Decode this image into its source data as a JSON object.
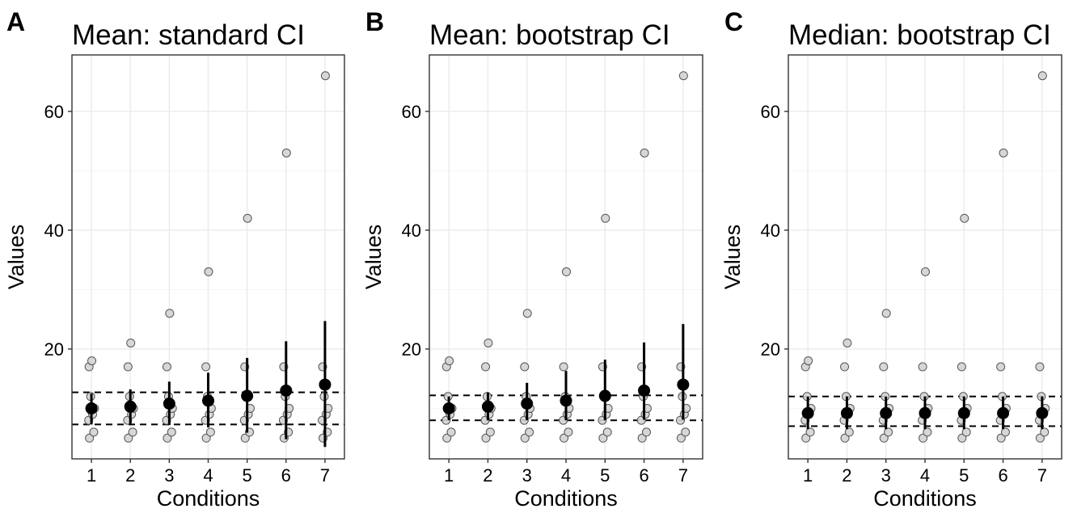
{
  "chart_data": [
    {
      "tag": "A",
      "title": "Mean: standard CI",
      "type": "scatter",
      "xlabel": "Conditions",
      "ylabel": "Values",
      "categories": [
        "1",
        "2",
        "3",
        "4",
        "5",
        "6",
        "7"
      ],
      "yticks": [
        "20",
        "40",
        "60"
      ],
      "ylim": [
        1.5,
        69.5
      ],
      "grid": true,
      "raw_points": [
        [
          5,
          6,
          8,
          9,
          10,
          12,
          17,
          18
        ],
        [
          5,
          6,
          8,
          9,
          10,
          12,
          17,
          21
        ],
        [
          5,
          6,
          8,
          9,
          10,
          12,
          17,
          26
        ],
        [
          5,
          6,
          8,
          9,
          10,
          12,
          17,
          33
        ],
        [
          5,
          6,
          8,
          9,
          10,
          12,
          17,
          42
        ],
        [
          5,
          6,
          8,
          9,
          10,
          12,
          17,
          53
        ],
        [
          5,
          6,
          8,
          9,
          10,
          12,
          17,
          66
        ]
      ],
      "estimate": [
        10,
        10.3,
        10.8,
        11.3,
        12.1,
        13.0,
        14.0
      ],
      "ci_low": [
        7.3,
        7.3,
        7.2,
        6.8,
        5.9,
        4.8,
        3.5
      ],
      "ci_high": [
        12.5,
        13.2,
        14.5,
        16.0,
        18.5,
        21.3,
        24.7
      ],
      "reference_lines": [
        7.3,
        12.7
      ]
    },
    {
      "tag": "B",
      "title": "Mean: bootstrap CI",
      "type": "scatter",
      "xlabel": "Conditions",
      "ylabel": "Values",
      "categories": [
        "1",
        "2",
        "3",
        "4",
        "5",
        "6",
        "7"
      ],
      "yticks": [
        "20",
        "40",
        "60"
      ],
      "ylim": [
        1.5,
        69.5
      ],
      "grid": true,
      "raw_points": [
        [
          5,
          6,
          8,
          9,
          10,
          12,
          17,
          18
        ],
        [
          5,
          6,
          8,
          9,
          10,
          12,
          17,
          21
        ],
        [
          5,
          6,
          8,
          9,
          10,
          12,
          17,
          26
        ],
        [
          5,
          6,
          8,
          9,
          10,
          12,
          17,
          33
        ],
        [
          5,
          6,
          8,
          9,
          10,
          12,
          17,
          42
        ],
        [
          5,
          6,
          8,
          9,
          10,
          12,
          17,
          53
        ],
        [
          5,
          6,
          8,
          9,
          10,
          12,
          17,
          66
        ]
      ],
      "estimate": [
        10,
        10.3,
        10.8,
        11.3,
        12.1,
        13.0,
        14.0
      ],
      "ci_low": [
        8.0,
        8.0,
        8.0,
        8.0,
        8.0,
        8.1,
        8.1
      ],
      "ci_high": [
        12.0,
        12.7,
        14.3,
        16.3,
        18.2,
        21.1,
        24.2
      ],
      "reference_lines": [
        8.0,
        12.2
      ]
    },
    {
      "tag": "C",
      "title": "Median: bootstrap CI",
      "type": "scatter",
      "xlabel": "Conditions",
      "ylabel": "Values",
      "categories": [
        "1",
        "2",
        "3",
        "4",
        "5",
        "6",
        "7"
      ],
      "yticks": [
        "20",
        "40",
        "60"
      ],
      "ylim": [
        1.5,
        69.5
      ],
      "grid": true,
      "raw_points": [
        [
          5,
          6,
          8,
          9,
          10,
          12,
          17,
          18
        ],
        [
          5,
          6,
          8,
          9,
          10,
          12,
          17,
          21
        ],
        [
          5,
          6,
          8,
          9,
          10,
          12,
          17,
          26
        ],
        [
          5,
          6,
          8,
          9,
          10,
          12,
          17,
          33
        ],
        [
          5,
          6,
          8,
          9,
          10,
          12,
          17,
          42
        ],
        [
          5,
          6,
          8,
          9,
          10,
          12,
          17,
          53
        ],
        [
          5,
          6,
          8,
          9,
          10,
          12,
          17,
          66
        ]
      ],
      "estimate": [
        9.2,
        9.2,
        9.2,
        9.2,
        9.2,
        9.2,
        9.2
      ],
      "ci_low": [
        6.5,
        6.5,
        6.5,
        6.5,
        6.5,
        6.5,
        6.5
      ],
      "ci_high": [
        12.0,
        12.0,
        12.0,
        12.0,
        12.0,
        12.0,
        12.0
      ],
      "reference_lines": [
        7.0,
        12.0
      ]
    }
  ],
  "colors": {
    "raw_point_fill": "#d3d3d3",
    "raw_point_stroke": "#555555",
    "estimate": "#000000",
    "grid_major": "#ebebeb",
    "grid_minor": "#f5f5f5",
    "panel_border": "#333333"
  }
}
